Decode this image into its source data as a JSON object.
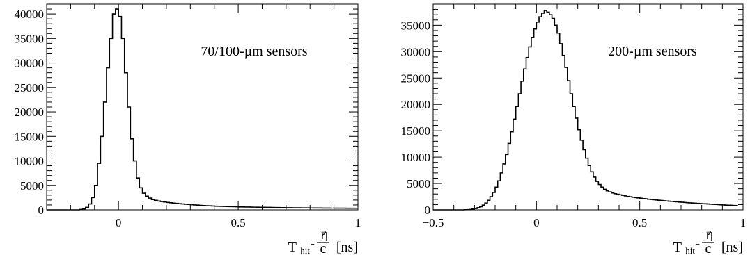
{
  "chart_data": [
    {
      "type": "histogram",
      "annotation": "70/100-µm sensors",
      "xlabel": {
        "main": "T",
        "sub": "hit",
        "minus": "-",
        "frac_num": "|r⃗|",
        "frac_den": "c",
        "unit": "[ns]"
      },
      "xlim": [
        -0.3,
        1.0
      ],
      "ylim": [
        0,
        42000
      ],
      "xticks": [
        0,
        0.5,
        1
      ],
      "xtick_labels": [
        "0",
        "0.5",
        "1"
      ],
      "yticks": [
        0,
        5000,
        10000,
        15000,
        20000,
        25000,
        30000,
        35000,
        40000
      ],
      "ytick_labels": [
        "0",
        "5000",
        "10000",
        "15000",
        "20000",
        "25000",
        "30000",
        "35000",
        "40000"
      ],
      "bin_width": 0.0125,
      "x_start": -0.3,
      "values": [
        0,
        0,
        0,
        0,
        0,
        0,
        0,
        0,
        0,
        0,
        0,
        80,
        200,
        500,
        1200,
        2500,
        5000,
        9500,
        15000,
        22000,
        29000,
        35000,
        40000,
        41000,
        39500,
        35000,
        28000,
        21000,
        14500,
        10000,
        6500,
        4500,
        3400,
        2800,
        2400,
        2100,
        1950,
        1800,
        1700,
        1600,
        1520,
        1450,
        1380,
        1320,
        1260,
        1200,
        1150,
        1100,
        1050,
        1000,
        960,
        920,
        880,
        850,
        820,
        790,
        760,
        740,
        720,
        700,
        680,
        660,
        640,
        620,
        600,
        590,
        580,
        570,
        560,
        550,
        540,
        530,
        520,
        510,
        500,
        490,
        480,
        470,
        460,
        450,
        440,
        430,
        420,
        415,
        410,
        405,
        400,
        395,
        390,
        385,
        380,
        375,
        370,
        365,
        360,
        355,
        350,
        345,
        345,
        340,
        335,
        330,
        325,
        320
      ]
    },
    {
      "type": "histogram",
      "annotation": "200-µm sensors",
      "xlabel": {
        "main": "T",
        "sub": "hit",
        "minus": "-",
        "frac_num": "|r⃗|",
        "frac_den": "c",
        "unit": "[ns]"
      },
      "xlim": [
        -0.5,
        1.0
      ],
      "ylim": [
        0,
        39000
      ],
      "xticks": [
        -0.5,
        0,
        0.5,
        1
      ],
      "xtick_labels": [
        "−0.5",
        "0",
        "0.5",
        "1"
      ],
      "yticks": [
        0,
        5000,
        10000,
        15000,
        20000,
        25000,
        30000,
        35000
      ],
      "ytick_labels": [
        "0",
        "5000",
        "10000",
        "15000",
        "20000",
        "25000",
        "30000",
        "35000"
      ],
      "bin_width": 0.0125,
      "x_start": -0.5,
      "values": [
        0,
        0,
        0,
        0,
        0,
        0,
        0,
        0,
        0,
        0,
        0,
        0,
        20,
        40,
        80,
        150,
        250,
        400,
        600,
        900,
        1300,
        1800,
        2500,
        3300,
        4300,
        5500,
        7000,
        8700,
        10500,
        12600,
        14800,
        17200,
        19600,
        22000,
        24400,
        26700,
        28900,
        30900,
        32700,
        34300,
        35600,
        36600,
        37300,
        37800,
        37500,
        37000,
        36300,
        35000,
        33500,
        31500,
        29300,
        27000,
        24500,
        22000,
        19600,
        17400,
        15200,
        13200,
        11400,
        9800,
        8400,
        7200,
        6200,
        5400,
        4800,
        4300,
        3900,
        3600,
        3400,
        3200,
        3050,
        2950,
        2850,
        2750,
        2650,
        2550,
        2480,
        2400,
        2330,
        2260,
        2200,
        2140,
        2080,
        2020,
        1970,
        1920,
        1870,
        1820,
        1770,
        1720,
        1680,
        1640,
        1600,
        1560,
        1520,
        1480,
        1440,
        1400,
        1360,
        1320,
        1290,
        1260,
        1230,
        1200,
        1170,
        1140,
        1110,
        1080,
        1050,
        1020,
        990,
        960,
        930,
        900,
        880,
        860,
        840,
        820
      ]
    }
  ]
}
